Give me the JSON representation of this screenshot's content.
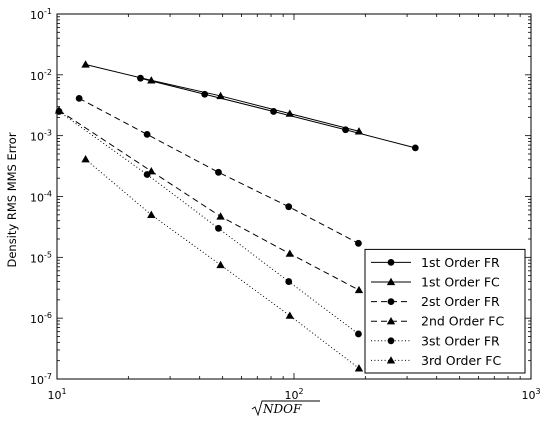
{
  "chart_data": {
    "type": "line",
    "title": "",
    "xlabel": "NDOF",
    "xlabel_sqrt": true,
    "ylabel": "Density RMS MMS Error",
    "xscale": "log",
    "yscale": "log",
    "xlim": [
      10,
      1000
    ],
    "ylim": [
      1e-07,
      0.1
    ],
    "grid": false,
    "legend_position": "bottom-right",
    "x_ticks": [
      {
        "value": 10,
        "base": "10",
        "exp": "1"
      },
      {
        "value": 100,
        "base": "10",
        "exp": "2"
      },
      {
        "value": 1000,
        "base": "10",
        "exp": "3"
      }
    ],
    "y_ticks": [
      {
        "value": 1e-07,
        "base": "10",
        "exp": "-7"
      },
      {
        "value": 1e-06,
        "base": "10",
        "exp": "-6"
      },
      {
        "value": 1e-05,
        "base": "10",
        "exp": "-5"
      },
      {
        "value": 0.0001,
        "base": "10",
        "exp": "-4"
      },
      {
        "value": 0.001,
        "base": "10",
        "exp": "-3"
      },
      {
        "value": 0.01,
        "base": "10",
        "exp": "-2"
      },
      {
        "value": 0.1,
        "base": "10",
        "exp": "-1"
      }
    ],
    "series": [
      {
        "name": "1st Order FR",
        "line": "solid",
        "marker": "circle",
        "x": [
          22.5,
          42,
          82,
          165,
          325
        ],
        "y": [
          0.0088,
          0.0048,
          0.0025,
          0.00125,
          0.00063
        ]
      },
      {
        "name": "1st Order FC",
        "line": "solid",
        "marker": "triangle",
        "x": [
          13.2,
          25,
          49,
          96,
          188
        ],
        "y": [
          0.0148,
          0.0081,
          0.0045,
          0.0023,
          0.00118
        ]
      },
      {
        "name": "2st Order FR",
        "line": "dashed",
        "marker": "circle",
        "x": [
          12.4,
          24,
          48,
          95,
          187
        ],
        "y": [
          0.0041,
          0.00105,
          0.00025,
          6.8e-05,
          1.7e-05
        ]
      },
      {
        "name": "2nd Order FC",
        "line": "dashed",
        "marker": "triangle",
        "x": [
          10.2,
          25,
          49,
          96,
          188
        ],
        "y": [
          0.0026,
          0.00026,
          4.7e-05,
          1.15e-05,
          2.9e-06
        ]
      },
      {
        "name": "3st Order FR",
        "line": "dotted",
        "marker": "circle",
        "x": [
          10.2,
          24,
          48,
          95,
          187
        ],
        "y": [
          0.0025,
          0.00023,
          3e-05,
          4e-06,
          5.5e-07
        ]
      },
      {
        "name": "3rd Order FC",
        "line": "dotted",
        "marker": "triangle",
        "x": [
          13.2,
          25,
          49,
          96,
          188
        ],
        "y": [
          0.00041,
          5e-05,
          7.5e-06,
          1.1e-06,
          1.5e-07
        ]
      }
    ]
  }
}
